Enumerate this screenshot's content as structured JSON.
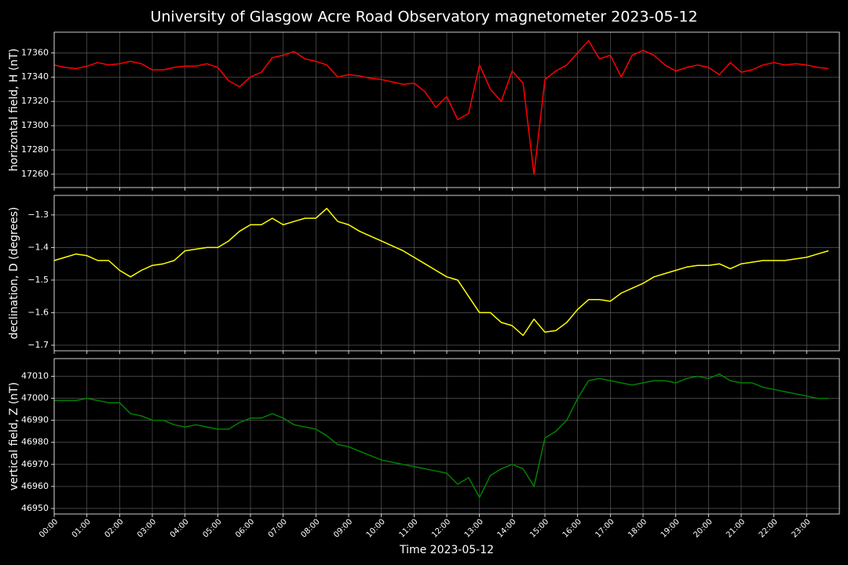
{
  "chart_data": [
    {
      "type": "line",
      "title": "University of Glasgow Acre Road Observatory magnetometer 2023-05-12",
      "ylabel": "horizontal field, H (nT)",
      "x": [
        "00:00",
        "00:20",
        "00:40",
        "01:00",
        "01:20",
        "01:40",
        "02:00",
        "02:20",
        "02:40",
        "03:00",
        "03:20",
        "03:40",
        "04:00",
        "04:20",
        "04:40",
        "05:00",
        "05:20",
        "05:40",
        "06:00",
        "06:20",
        "06:40",
        "07:00",
        "07:20",
        "07:40",
        "08:00",
        "08:20",
        "08:40",
        "09:00",
        "09:20",
        "09:40",
        "10:00",
        "10:20",
        "10:40",
        "11:00",
        "11:20",
        "11:40",
        "12:00",
        "12:20",
        "12:40",
        "13:00",
        "13:20",
        "13:40",
        "14:00",
        "14:20",
        "14:40",
        "15:00",
        "15:20",
        "15:40",
        "16:00",
        "16:20",
        "16:40",
        "17:00",
        "17:20",
        "17:40",
        "18:00",
        "18:20",
        "18:40",
        "19:00",
        "19:20",
        "19:40",
        "20:00",
        "20:20",
        "20:40",
        "21:00",
        "21:20",
        "21:40",
        "22:00",
        "22:20",
        "22:40",
        "23:00",
        "23:20",
        "23:40"
      ],
      "series": [
        {
          "name": "H",
          "color": "#ff0000",
          "values": [
            17350,
            17348,
            17347,
            17349,
            17352,
            17350,
            17351,
            17353,
            17351,
            17346,
            17346,
            17348,
            17349,
            17349,
            17351,
            17348,
            17337,
            17332,
            17340,
            17344,
            17356,
            17358,
            17361,
            17355,
            17353,
            17350,
            17340,
            17342,
            17341,
            17339,
            17338,
            17336,
            17334,
            17335,
            17328,
            17315,
            17324,
            17305,
            17310,
            17350,
            17330,
            17320,
            17345,
            17335,
            17260,
            17338,
            17345,
            17350,
            17360,
            17370,
            17355,
            17358,
            17340,
            17358,
            17362,
            17358,
            17350,
            17345,
            17348,
            17350,
            17348,
            17342,
            17352,
            17344,
            17346,
            17350,
            17352,
            17350,
            17351,
            17350,
            17348,
            17347
          ]
        }
      ],
      "xlim": [
        "00:00",
        "24:00"
      ],
      "xticks": [
        "00:00",
        "01:00",
        "02:00",
        "03:00",
        "04:00",
        "05:00",
        "06:00",
        "07:00",
        "08:00",
        "09:00",
        "10:00",
        "11:00",
        "12:00",
        "13:00",
        "14:00",
        "15:00",
        "16:00",
        "17:00",
        "18:00",
        "19:00",
        "20:00",
        "21:00",
        "22:00",
        "23:00"
      ],
      "ylim": [
        17249,
        17377
      ],
      "yticks": [
        17260,
        17280,
        17300,
        17320,
        17340,
        17360
      ],
      "grid": true
    },
    {
      "type": "line",
      "ylabel": "declination, D (degrees)",
      "x": [
        "00:00",
        "00:20",
        "00:40",
        "01:00",
        "01:20",
        "01:40",
        "02:00",
        "02:20",
        "02:40",
        "03:00",
        "03:20",
        "03:40",
        "04:00",
        "04:20",
        "04:40",
        "05:00",
        "05:20",
        "05:40",
        "06:00",
        "06:20",
        "06:40",
        "07:00",
        "07:20",
        "07:40",
        "08:00",
        "08:20",
        "08:40",
        "09:00",
        "09:20",
        "09:40",
        "10:00",
        "10:20",
        "10:40",
        "11:00",
        "11:20",
        "11:40",
        "12:00",
        "12:20",
        "12:40",
        "13:00",
        "13:20",
        "13:40",
        "14:00",
        "14:20",
        "14:40",
        "15:00",
        "15:20",
        "15:40",
        "16:00",
        "16:20",
        "16:40",
        "17:00",
        "17:20",
        "17:40",
        "18:00",
        "18:20",
        "18:40",
        "19:00",
        "19:20",
        "19:40",
        "20:00",
        "20:20",
        "20:40",
        "21:00",
        "21:20",
        "21:40",
        "22:00",
        "22:20",
        "22:40",
        "23:00",
        "23:20",
        "23:40"
      ],
      "series": [
        {
          "name": "D",
          "color": "#ffff00",
          "values": [
            -1.44,
            -1.43,
            -1.42,
            -1.425,
            -1.44,
            -1.44,
            -1.47,
            -1.49,
            -1.47,
            -1.455,
            -1.45,
            -1.44,
            -1.41,
            -1.405,
            -1.4,
            -1.4,
            -1.38,
            -1.35,
            -1.33,
            -1.33,
            -1.31,
            -1.33,
            -1.32,
            -1.31,
            -1.31,
            -1.28,
            -1.32,
            -1.33,
            -1.35,
            -1.365,
            -1.38,
            -1.395,
            -1.41,
            -1.43,
            -1.45,
            -1.47,
            -1.49,
            -1.5,
            -1.55,
            -1.6,
            -1.6,
            -1.63,
            -1.64,
            -1.67,
            -1.62,
            -1.66,
            -1.655,
            -1.63,
            -1.59,
            -1.56,
            -1.56,
            -1.565,
            -1.54,
            -1.525,
            -1.51,
            -1.49,
            -1.48,
            -1.47,
            -1.46,
            -1.455,
            -1.455,
            -1.45,
            -1.465,
            -1.45,
            -1.445,
            -1.44,
            -1.44,
            -1.44,
            -1.435,
            -1.43,
            -1.42,
            -1.41
          ]
        }
      ],
      "xlim": [
        "00:00",
        "24:00"
      ],
      "xticks": [
        "00:00",
        "01:00",
        "02:00",
        "03:00",
        "04:00",
        "05:00",
        "06:00",
        "07:00",
        "08:00",
        "09:00",
        "10:00",
        "11:00",
        "12:00",
        "13:00",
        "14:00",
        "15:00",
        "16:00",
        "17:00",
        "18:00",
        "19:00",
        "20:00",
        "21:00",
        "22:00",
        "23:00"
      ],
      "ylim": [
        -1.717,
        -1.24
      ],
      "yticks": [
        {
          "value": -1.7,
          "label": "−1.7"
        },
        {
          "value": -1.6,
          "label": "−1.6"
        },
        {
          "value": -1.5,
          "label": "−1.5"
        },
        {
          "value": -1.4,
          "label": "−1.4"
        },
        {
          "value": -1.3,
          "label": "−1.3"
        }
      ],
      "grid": true
    },
    {
      "type": "line",
      "ylabel": "vertical field, Z (nT)",
      "xlabel": "Time 2023-05-12",
      "x": [
        "00:00",
        "00:20",
        "00:40",
        "01:00",
        "01:20",
        "01:40",
        "02:00",
        "02:20",
        "02:40",
        "03:00",
        "03:20",
        "03:40",
        "04:00",
        "04:20",
        "04:40",
        "05:00",
        "05:20",
        "05:40",
        "06:00",
        "06:20",
        "06:40",
        "07:00",
        "07:20",
        "07:40",
        "08:00",
        "08:20",
        "08:40",
        "09:00",
        "09:20",
        "09:40",
        "10:00",
        "10:20",
        "10:40",
        "11:00",
        "11:20",
        "11:40",
        "12:00",
        "12:20",
        "12:40",
        "13:00",
        "13:20",
        "13:40",
        "14:00",
        "14:20",
        "14:40",
        "15:00",
        "15:20",
        "15:40",
        "16:00",
        "16:20",
        "16:40",
        "17:00",
        "17:20",
        "17:40",
        "18:00",
        "18:20",
        "18:40",
        "19:00",
        "19:20",
        "19:40",
        "20:00",
        "20:20",
        "20:40",
        "21:00",
        "21:20",
        "21:40",
        "22:00",
        "22:20",
        "22:40",
        "23:00",
        "23:20",
        "23:40"
      ],
      "series": [
        {
          "name": "Z",
          "color": "#008000",
          "values": [
            46999,
            46999,
            46999,
            47000,
            46999,
            46998,
            46998,
            46993,
            46992,
            46990,
            46990,
            46988,
            46987,
            46988,
            46987,
            46986,
            46986,
            46989,
            46991,
            46991,
            46993,
            46991,
            46988,
            46987,
            46986,
            46983,
            46979,
            46978,
            46976,
            46974,
            46972,
            46971,
            46970,
            46969,
            46968,
            46967,
            46966,
            46961,
            46964,
            46955,
            46965,
            46968,
            46970,
            46968,
            46960,
            46982,
            46985,
            46990,
            47000,
            47008,
            47009,
            47008,
            47007,
            47006,
            47007,
            47008,
            47008,
            47007,
            47009,
            47010,
            47009,
            47011,
            47008,
            47007,
            47007,
            47005,
            47004,
            47003,
            47002,
            47001,
            47000,
            47000
          ]
        }
      ],
      "xlim": [
        "00:00",
        "24:00"
      ],
      "xticks": [
        "00:00",
        "01:00",
        "02:00",
        "03:00",
        "04:00",
        "05:00",
        "06:00",
        "07:00",
        "08:00",
        "09:00",
        "10:00",
        "11:00",
        "12:00",
        "13:00",
        "14:00",
        "15:00",
        "16:00",
        "17:00",
        "18:00",
        "19:00",
        "20:00",
        "21:00",
        "22:00",
        "23:00"
      ],
      "ylim": [
        46947.5,
        47018
      ],
      "yticks": [
        46950,
        46960,
        46970,
        46980,
        46990,
        47000,
        47010
      ],
      "grid": true
    }
  ]
}
